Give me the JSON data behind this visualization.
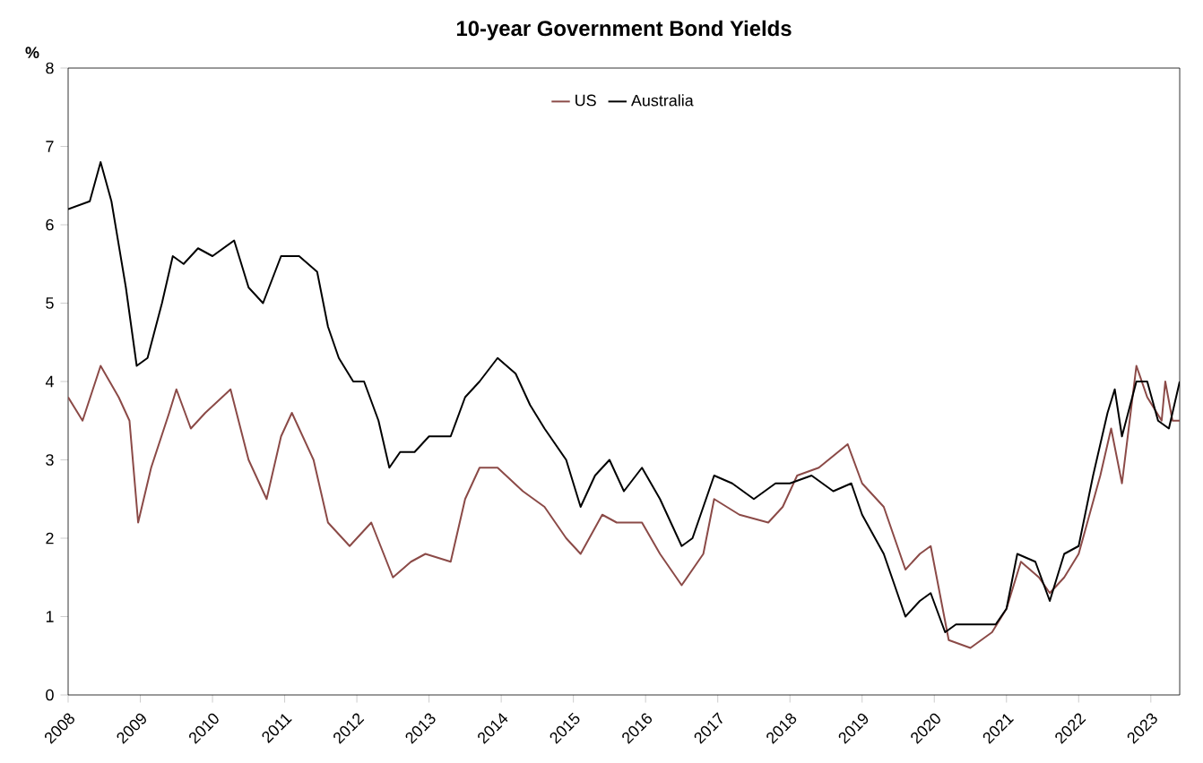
{
  "chart_data": {
    "type": "line",
    "title": "10-year Government Bond Yields",
    "ylabel": "%",
    "legend": "top",
    "grid": false,
    "marker": "none",
    "line_style": "solid",
    "xlim": [
      2008,
      2023.4
    ],
    "xticks": [
      2008,
      2009,
      2010,
      2011,
      2012,
      2013,
      2014,
      2015,
      2016,
      2017,
      2018,
      2019,
      2020,
      2021,
      2022,
      2023
    ],
    "ylim": [
      0,
      8
    ],
    "yticks": [
      0,
      1,
      2,
      3,
      4,
      5,
      6,
      7,
      8
    ],
    "series": [
      {
        "name": "US",
        "color": "#8b4a47",
        "x": [
          2008.0,
          2008.2,
          2008.45,
          2008.7,
          2008.85,
          2008.97,
          2009.15,
          2009.4,
          2009.5,
          2009.7,
          2009.9,
          2010.25,
          2010.5,
          2010.75,
          2010.95,
          2011.1,
          2011.4,
          2011.6,
          2011.9,
          2012.2,
          2012.5,
          2012.75,
          2012.95,
          2013.3,
          2013.5,
          2013.7,
          2013.95,
          2014.3,
          2014.6,
          2014.9,
          2015.1,
          2015.4,
          2015.6,
          2015.95,
          2016.2,
          2016.5,
          2016.8,
          2016.95,
          2017.3,
          2017.7,
          2017.9,
          2018.1,
          2018.4,
          2018.8,
          2019.0,
          2019.3,
          2019.6,
          2019.8,
          2019.95,
          2020.2,
          2020.5,
          2020.8,
          2021.0,
          2021.2,
          2021.45,
          2021.6,
          2021.8,
          2022.0,
          2022.3,
          2022.45,
          2022.6,
          2022.8,
          2022.95,
          2023.15,
          2023.2,
          2023.3,
          2023.4
        ],
        "values": [
          3.8,
          3.5,
          4.2,
          3.8,
          3.5,
          2.2,
          2.9,
          3.6,
          3.9,
          3.4,
          3.6,
          3.9,
          3.0,
          2.5,
          3.3,
          3.6,
          3.0,
          2.2,
          1.9,
          2.2,
          1.5,
          1.7,
          1.8,
          1.7,
          2.5,
          2.9,
          2.9,
          2.6,
          2.4,
          2.0,
          1.8,
          2.3,
          2.2,
          2.2,
          1.8,
          1.4,
          1.8,
          2.5,
          2.3,
          2.2,
          2.4,
          2.8,
          2.9,
          3.2,
          2.7,
          2.4,
          1.6,
          1.8,
          1.9,
          0.7,
          0.6,
          0.8,
          1.1,
          1.7,
          1.5,
          1.3,
          1.5,
          1.8,
          2.8,
          3.4,
          2.7,
          4.2,
          3.8,
          3.5,
          4.0,
          3.5,
          3.5
        ]
      },
      {
        "name": "Australia",
        "color": "#000000",
        "x": [
          2008.0,
          2008.3,
          2008.45,
          2008.6,
          2008.8,
          2008.95,
          2009.1,
          2009.3,
          2009.45,
          2009.6,
          2009.8,
          2010.0,
          2010.3,
          2010.5,
          2010.7,
          2010.95,
          2011.2,
          2011.45,
          2011.6,
          2011.75,
          2011.95,
          2012.1,
          2012.3,
          2012.45,
          2012.6,
          2012.8,
          2013.0,
          2013.3,
          2013.5,
          2013.7,
          2013.95,
          2014.2,
          2014.4,
          2014.6,
          2014.9,
          2015.1,
          2015.3,
          2015.5,
          2015.7,
          2015.95,
          2016.2,
          2016.5,
          2016.65,
          2016.95,
          2017.2,
          2017.5,
          2017.8,
          2018.0,
          2018.3,
          2018.6,
          2018.85,
          2019.0,
          2019.3,
          2019.6,
          2019.8,
          2019.95,
          2020.15,
          2020.3,
          2020.6,
          2020.85,
          2021.0,
          2021.15,
          2021.4,
          2021.6,
          2021.8,
          2022.0,
          2022.2,
          2022.4,
          2022.5,
          2022.6,
          2022.8,
          2022.95,
          2023.1,
          2023.25,
          2023.4
        ],
        "values": [
          6.2,
          6.3,
          6.8,
          6.3,
          5.2,
          4.2,
          4.3,
          5.0,
          5.6,
          5.5,
          5.7,
          5.6,
          5.8,
          5.2,
          5.0,
          5.6,
          5.6,
          5.4,
          4.7,
          4.3,
          4.0,
          4.0,
          3.5,
          2.9,
          3.1,
          3.1,
          3.3,
          3.3,
          3.8,
          4.0,
          4.3,
          4.1,
          3.7,
          3.4,
          3.0,
          2.4,
          2.8,
          3.0,
          2.6,
          2.9,
          2.5,
          1.9,
          2.0,
          2.8,
          2.7,
          2.5,
          2.7,
          2.7,
          2.8,
          2.6,
          2.7,
          2.3,
          1.8,
          1.0,
          1.2,
          1.3,
          0.8,
          0.9,
          0.9,
          0.9,
          1.1,
          1.8,
          1.7,
          1.2,
          1.8,
          1.9,
          2.8,
          3.6,
          3.9,
          3.3,
          4.0,
          4.0,
          3.5,
          3.4,
          4.0
        ]
      }
    ]
  }
}
